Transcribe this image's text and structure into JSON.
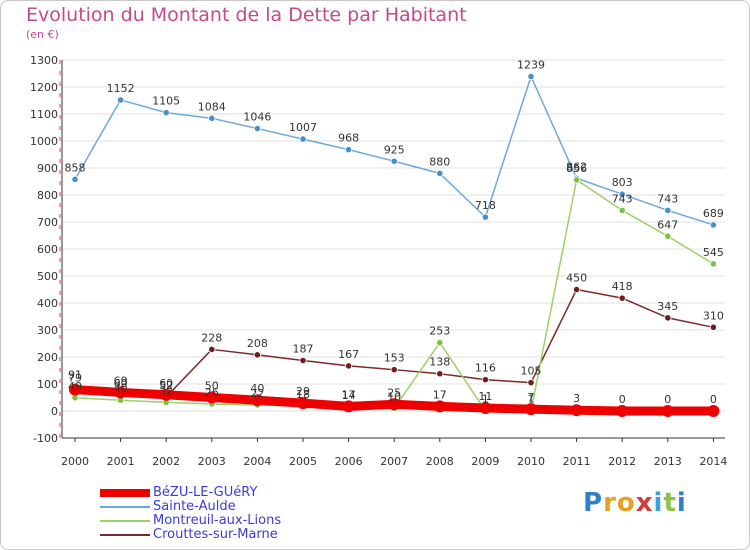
{
  "title": "Evolution du Montant de la Dette par Habitant",
  "unit_label": "(en €)",
  "logo": {
    "letters": [
      "P",
      "r",
      "o",
      "x",
      "i",
      "t",
      "i"
    ],
    "colors": [
      "#2f80c8",
      "#e8a020",
      "#e8a020",
      "#d33a3a",
      "#3aa0d8",
      "#8bc34a",
      "#2f80c8"
    ]
  },
  "colors": {
    "title": "#c44a8c",
    "axis": "#333333",
    "grid": "#e0e0e0",
    "zero_line": "#dddddd",
    "side_ticks": "#e04040"
  },
  "chart_data": {
    "type": "line",
    "title": "Evolution du Montant de la Dette par Habitant",
    "ylabel": "(en €)",
    "xlabel": "",
    "x": [
      "2000",
      "2001",
      "2002",
      "2003",
      "2004",
      "2005",
      "2006",
      "2007",
      "2008",
      "2009",
      "2010",
      "2011",
      "2012",
      "2013",
      "2014"
    ],
    "ylim": [
      -100,
      1300
    ],
    "yticks": [
      -100,
      0,
      100,
      200,
      300,
      400,
      500,
      600,
      700,
      800,
      900,
      1000,
      1100,
      1200,
      1300
    ],
    "grid": "horizontal",
    "legend_position": "bottom-left",
    "series": [
      {
        "name": "BéZU-LE-GUéRY",
        "color": "#ee0000",
        "values": [
          79,
          69,
          60,
          50,
          40,
          29,
          17,
          25,
          17,
          11,
          7,
          3,
          0,
          0,
          0
        ]
      },
      {
        "name": "Sainte-Aulde",
        "color": "#6fa8dc",
        "point_color": "#4a90c8",
        "values": [
          858,
          1152,
          1105,
          1084,
          1046,
          1007,
          968,
          925,
          880,
          718,
          1239,
          862,
          803,
          743,
          689
        ]
      },
      {
        "name": "Montreuil-aux-Lions",
        "color": "#9ad26a",
        "point_color": "#7cc242",
        "values": [
          49,
          40,
          32,
          26,
          22,
          18,
          14,
          10,
          253,
          1,
          1,
          856,
          743,
          647,
          545
        ]
      },
      {
        "name": "Crouttes-sur-Marne",
        "color": "#7a2a2a",
        "point_color": "#6b1f1f",
        "values": [
          91,
          60,
          52,
          228,
          208,
          187,
          167,
          153,
          138,
          116,
          105,
          450,
          418,
          345,
          310
        ]
      }
    ],
    "data_labels": {
      "Sainte-Aulde": [
        "858",
        "1152",
        "1105",
        "1084",
        "1046",
        "1007",
        "968",
        "925",
        "880",
        "718",
        "1239",
        "862",
        "803",
        "743",
        "689"
      ],
      "Montreuil-aux-Lions": [
        "49",
        "40",
        "32",
        "26",
        "22",
        "18",
        "14",
        "10",
        "253",
        "1",
        "1",
        "856",
        "743",
        "647",
        "545"
      ],
      "Crouttes-sur-Marne": [
        "91",
        "60",
        "52",
        "228",
        "208",
        "187",
        "167",
        "153",
        "138",
        "116",
        "105",
        "450",
        "418",
        "345",
        "310"
      ],
      "BéZU-LE-GUéRY": [
        "79",
        "69",
        "60",
        "50",
        "40",
        "29",
        "17",
        "25",
        "17",
        "11",
        "7",
        "3",
        "0",
        "0",
        "0"
      ]
    }
  }
}
